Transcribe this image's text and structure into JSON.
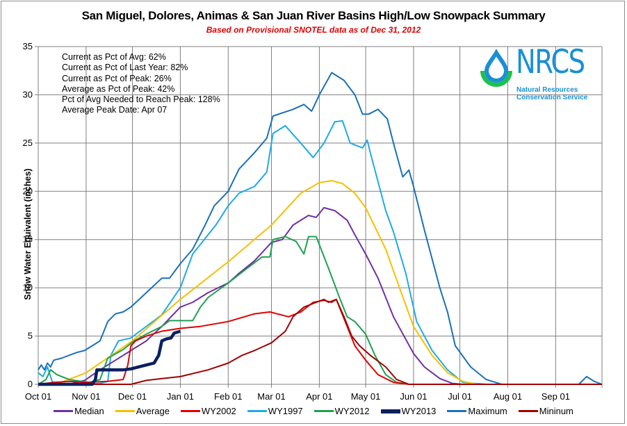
{
  "chart_data": {
    "type": "line",
    "title": "San Miguel, Dolores, Animas & San Juan River Basins High/Low Snowpack Summary",
    "subtitle": "Based on Provisional SNOTEL data as of Dec 31, 2012",
    "xlabel": "",
    "ylabel": "Snow Water Equivalent (inches)",
    "ylim": [
      0,
      35
    ],
    "xlim_days": [
      0,
      365
    ],
    "y_ticks": [
      "0",
      "5",
      "10",
      "15",
      "20",
      "25",
      "30",
      "35"
    ],
    "x_ticks": [
      {
        "label": "Oct 01",
        "day": 0
      },
      {
        "label": "Nov 01",
        "day": 31
      },
      {
        "label": "Dec 01",
        "day": 61
      },
      {
        "label": "Jan 01",
        "day": 92
      },
      {
        "label": "Feb 01",
        "day": 123
      },
      {
        "label": "Mar 01",
        "day": 151
      },
      {
        "label": "Apr 01",
        "day": 182
      },
      {
        "label": "May 01",
        "day": 212
      },
      {
        "label": "Jun 01",
        "day": 243
      },
      {
        "label": "Jul 01",
        "day": 273
      },
      {
        "label": "Aug 01",
        "day": 304
      },
      {
        "label": "Sep 01",
        "day": 335
      }
    ],
    "grid": true,
    "legend_position": "bottom",
    "x_unit": "days since Oct 01",
    "series": [
      {
        "name": "Median",
        "color": "#7030a0",
        "width": 2,
        "points": [
          [
            0,
            0
          ],
          [
            20,
            0
          ],
          [
            30,
            0.4
          ],
          [
            40,
            1.5
          ],
          [
            50,
            2.5
          ],
          [
            60,
            3.5
          ],
          [
            70,
            4.5
          ],
          [
            80,
            6
          ],
          [
            92,
            8
          ],
          [
            100,
            8.5
          ],
          [
            110,
            9.5
          ],
          [
            123,
            10.5
          ],
          [
            130,
            11.5
          ],
          [
            140,
            12.8
          ],
          [
            151,
            14.7
          ],
          [
            158,
            15
          ],
          [
            165,
            16.5
          ],
          [
            175,
            17.5
          ],
          [
            180,
            17.3
          ],
          [
            185,
            18.3
          ],
          [
            192,
            18
          ],
          [
            200,
            17
          ],
          [
            205,
            15.5
          ],
          [
            212,
            13.5
          ],
          [
            220,
            11
          ],
          [
            230,
            7
          ],
          [
            243,
            3.2
          ],
          [
            250,
            1.8
          ],
          [
            260,
            0.6
          ],
          [
            268,
            0.1
          ],
          [
            275,
            0
          ],
          [
            365,
            0
          ]
        ]
      },
      {
        "name": "Average",
        "color": "#f5c000",
        "width": 2,
        "points": [
          [
            0,
            0
          ],
          [
            15,
            0.2
          ],
          [
            31,
            1.2
          ],
          [
            61,
            4.5
          ],
          [
            92,
            8.8
          ],
          [
            123,
            12.7
          ],
          [
            151,
            16.5
          ],
          [
            170,
            19.8
          ],
          [
            182,
            20.9
          ],
          [
            190,
            21.1
          ],
          [
            197,
            20.8
          ],
          [
            205,
            19.8
          ],
          [
            212,
            18.3
          ],
          [
            225,
            14
          ],
          [
            235,
            9.5
          ],
          [
            243,
            6
          ],
          [
            255,
            3
          ],
          [
            265,
            1.2
          ],
          [
            275,
            0.3
          ],
          [
            285,
            0
          ],
          [
            365,
            0
          ]
        ]
      },
      {
        "name": "WY2002",
        "color": "#e00000",
        "width": 2,
        "points": [
          [
            0,
            0
          ],
          [
            10,
            0.2
          ],
          [
            20,
            0.3
          ],
          [
            30,
            0.2
          ],
          [
            45,
            0.3
          ],
          [
            55,
            0.5
          ],
          [
            58,
            2
          ],
          [
            60,
            4
          ],
          [
            63,
            4.5
          ],
          [
            70,
            5
          ],
          [
            80,
            5.5
          ],
          [
            92,
            5.8
          ],
          [
            105,
            6
          ],
          [
            123,
            6.5
          ],
          [
            140,
            7.3
          ],
          [
            150,
            7.5
          ],
          [
            162,
            7
          ],
          [
            170,
            7.5
          ],
          [
            178,
            8.5
          ],
          [
            185,
            8.7
          ],
          [
            190,
            8.5
          ],
          [
            193,
            8.8
          ],
          [
            200,
            6
          ],
          [
            205,
            4
          ],
          [
            212,
            2.5
          ],
          [
            220,
            1
          ],
          [
            230,
            0.2
          ],
          [
            240,
            0
          ],
          [
            365,
            0
          ]
        ]
      },
      {
        "name": "WY1997",
        "color": "#1eaae7",
        "width": 2,
        "points": [
          [
            0,
            1.2
          ],
          [
            3,
            0.8
          ],
          [
            6,
            1.8
          ],
          [
            9,
            0.3
          ],
          [
            12,
            0
          ],
          [
            30,
            0
          ],
          [
            40,
            0.1
          ],
          [
            45,
            0.3
          ],
          [
            47,
            3
          ],
          [
            52,
            4.5
          ],
          [
            60,
            4.8
          ],
          [
            70,
            6
          ],
          [
            80,
            7.2
          ],
          [
            92,
            10
          ],
          [
            100,
            13.5
          ],
          [
            115,
            16.5
          ],
          [
            123,
            18.5
          ],
          [
            130,
            19.8
          ],
          [
            140,
            20.5
          ],
          [
            148,
            22
          ],
          [
            152,
            26
          ],
          [
            160,
            26.8
          ],
          [
            170,
            25
          ],
          [
            178,
            23.5
          ],
          [
            185,
            25
          ],
          [
            192,
            27.2
          ],
          [
            197,
            27.3
          ],
          [
            202,
            25
          ],
          [
            210,
            24.5
          ],
          [
            213,
            25.3
          ],
          [
            215,
            24
          ],
          [
            220,
            21
          ],
          [
            225,
            18
          ],
          [
            230,
            15.8
          ],
          [
            238,
            11.5
          ],
          [
            245,
            6.5
          ],
          [
            255,
            3.5
          ],
          [
            265,
            1.5
          ],
          [
            275,
            0.2
          ],
          [
            290,
            0
          ],
          [
            365,
            0
          ]
        ]
      },
      {
        "name": "WY2012",
        "color": "#1ea050",
        "width": 2,
        "points": [
          [
            0,
            0
          ],
          [
            5,
            0.5
          ],
          [
            8,
            1.5
          ],
          [
            12,
            1
          ],
          [
            20,
            0.5
          ],
          [
            28,
            0.3
          ],
          [
            33,
            0.2
          ],
          [
            40,
            0.5
          ],
          [
            45,
            2.7
          ],
          [
            55,
            3.6
          ],
          [
            62,
            4.5
          ],
          [
            70,
            5.2
          ],
          [
            80,
            6
          ],
          [
            85,
            6.6
          ],
          [
            92,
            6.6
          ],
          [
            100,
            6.6
          ],
          [
            105,
            8
          ],
          [
            110,
            9
          ],
          [
            123,
            10.5
          ],
          [
            135,
            12
          ],
          [
            145,
            13.2
          ],
          [
            150,
            13.2
          ],
          [
            152,
            15
          ],
          [
            160,
            15.3
          ],
          [
            167,
            14.8
          ],
          [
            172,
            13.5
          ],
          [
            175,
            15.3
          ],
          [
            180,
            15.3
          ],
          [
            188,
            12
          ],
          [
            195,
            9
          ],
          [
            200,
            7
          ],
          [
            205,
            6.5
          ],
          [
            212,
            5.2
          ],
          [
            218,
            3
          ],
          [
            225,
            1
          ],
          [
            232,
            0.2
          ],
          [
            240,
            0
          ],
          [
            365,
            0
          ]
        ]
      },
      {
        "name": "WY2013",
        "color": "#0a2060",
        "width": 4.5,
        "points": [
          [
            0,
            0
          ],
          [
            20,
            0
          ],
          [
            35,
            0
          ],
          [
            37,
            0.5
          ],
          [
            38,
            1.5
          ],
          [
            45,
            1.5
          ],
          [
            55,
            1.5
          ],
          [
            60,
            1.6
          ],
          [
            70,
            2
          ],
          [
            75,
            2.2
          ],
          [
            78,
            3
          ],
          [
            80,
            4.5
          ],
          [
            83,
            4.7
          ],
          [
            86,
            4.8
          ],
          [
            88,
            5.3
          ],
          [
            92,
            5.5
          ]
        ]
      },
      {
        "name": "Maximum",
        "color": "#1a70b8",
        "width": 2,
        "points": [
          [
            0,
            1.5
          ],
          [
            2,
            2
          ],
          [
            4,
            1.5
          ],
          [
            6,
            2.2
          ],
          [
            8,
            1.8
          ],
          [
            10,
            2.5
          ],
          [
            15,
            2.7
          ],
          [
            20,
            3
          ],
          [
            25,
            3.3
          ],
          [
            30,
            3.5
          ],
          [
            35,
            4
          ],
          [
            40,
            4.5
          ],
          [
            45,
            6.5
          ],
          [
            50,
            7.3
          ],
          [
            55,
            7.5
          ],
          [
            60,
            8
          ],
          [
            70,
            9.5
          ],
          [
            80,
            11
          ],
          [
            85,
            11
          ],
          [
            92,
            12.5
          ],
          [
            100,
            14
          ],
          [
            108,
            16.5
          ],
          [
            114,
            18.5
          ],
          [
            123,
            20
          ],
          [
            130,
            22.3
          ],
          [
            140,
            24
          ],
          [
            148,
            25.5
          ],
          [
            152,
            27.8
          ],
          [
            165,
            28.5
          ],
          [
            172,
            29
          ],
          [
            177,
            28.3
          ],
          [
            182,
            30
          ],
          [
            190,
            32.3
          ],
          [
            198,
            31.5
          ],
          [
            205,
            30
          ],
          [
            210,
            28
          ],
          [
            214,
            28
          ],
          [
            220,
            28.5
          ],
          [
            226,
            27.5
          ],
          [
            230,
            25
          ],
          [
            236,
            21.5
          ],
          [
            240,
            22.2
          ],
          [
            243,
            20.5
          ],
          [
            250,
            16
          ],
          [
            255,
            13
          ],
          [
            260,
            10
          ],
          [
            265,
            7.5
          ],
          [
            270,
            4
          ],
          [
            280,
            1.8
          ],
          [
            290,
            0.5
          ],
          [
            300,
            0
          ],
          [
            350,
            0
          ],
          [
            355,
            0.8
          ],
          [
            360,
            0.3
          ],
          [
            365,
            0
          ]
        ]
      },
      {
        "name": "Mininum",
        "color": "#a00000",
        "width": 2,
        "points": [
          [
            0,
            0
          ],
          [
            60,
            0
          ],
          [
            70,
            0.4
          ],
          [
            80,
            0.6
          ],
          [
            92,
            0.8
          ],
          [
            110,
            1.5
          ],
          [
            123,
            2.2
          ],
          [
            132,
            3
          ],
          [
            140,
            3.5
          ],
          [
            151,
            4.3
          ],
          [
            160,
            5.5
          ],
          [
            165,
            7
          ],
          [
            172,
            8
          ],
          [
            180,
            8.5
          ],
          [
            185,
            8.8
          ],
          [
            188,
            8.5
          ],
          [
            193,
            8.8
          ],
          [
            198,
            7
          ],
          [
            203,
            5
          ],
          [
            208,
            4
          ],
          [
            215,
            3
          ],
          [
            225,
            1.8
          ],
          [
            232,
            0.5
          ],
          [
            240,
            0
          ],
          [
            365,
            0
          ]
        ]
      }
    ],
    "annotations": [
      "Current as Pct of Avg: 62%",
      "Current as Pct of Last Year: 82%",
      "Current as Pct of Peak: 26%",
      "Average as Pct of Peak: 42%",
      "Pct of Avg Needed to Reach Peak: 128%",
      "Average Peak Date: Apr 07"
    ]
  },
  "logo": {
    "name": "NRCS",
    "line1": "Natural Resources",
    "line2": "Conservation Service"
  }
}
